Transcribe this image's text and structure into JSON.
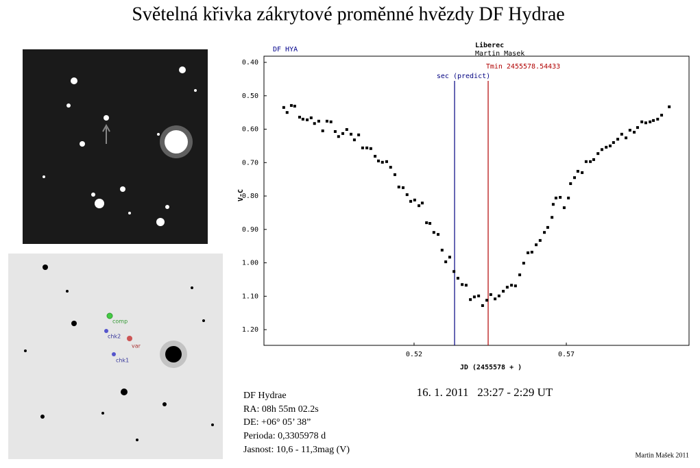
{
  "header": {
    "title": "Světelná křivka zákrytové proměnné hvězdy DF Hydrae"
  },
  "finder_labels": [
    "comp",
    "chk2",
    "var",
    "chk1"
  ],
  "chart_data": {
    "type": "scatter",
    "star_label": "DF HYA",
    "observatory": "Liberec",
    "observer": "Martin Masek",
    "xlabel": "JD (2455578 + )",
    "ylabel": "V-C",
    "xlim": [
      0.4707,
      0.6103
    ],
    "ylim": [
      1.247,
      0.3815
    ],
    "xticks": [
      0.52,
      0.57
    ],
    "yticks": [
      {
        "value": 0.4,
        "label": "0.40"
      },
      {
        "value": 0.5,
        "label": "0.50"
      },
      {
        "value": 0.6,
        "label": "0.60"
      },
      {
        "value": 0.7,
        "label": "0.70"
      },
      {
        "value": 0.8,
        "label": "0.80"
      },
      {
        "value": 0.9,
        "label": "0.90"
      },
      {
        "value": 1.0,
        "label": "1.00"
      },
      {
        "value": 1.1,
        "label": "1.10"
      },
      {
        "value": 1.2,
        "label": "1.20"
      }
    ],
    "color": "#000000",
    "x": [
      0.4772,
      0.4783,
      0.4797,
      0.4808,
      0.4824,
      0.4835,
      0.4849,
      0.4862,
      0.4873,
      0.4887,
      0.49,
      0.4914,
      0.4927,
      0.4941,
      0.4952,
      0.4966,
      0.4979,
      0.4993,
      0.5004,
      0.5018,
      0.5031,
      0.5045,
      0.5058,
      0.5072,
      0.5083,
      0.5096,
      0.511,
      0.5123,
      0.5137,
      0.515,
      0.5164,
      0.5177,
      0.5189,
      0.5202,
      0.5216,
      0.5227,
      0.5241,
      0.5252,
      0.5265,
      0.5279,
      0.5292,
      0.5304,
      0.5317,
      0.5331,
      0.5344,
      0.5358,
      0.5371,
      0.5385,
      0.5398,
      0.5412,
      0.5425,
      0.5439,
      0.5452,
      0.5466,
      0.5479,
      0.5493,
      0.5506,
      0.552,
      0.5533,
      0.5547,
      0.556,
      0.5574,
      0.5587,
      0.5601,
      0.5614,
      0.5628,
      0.5639,
      0.5653,
      0.5657,
      0.5666,
      0.568,
      0.5693,
      0.5707,
      0.5714,
      0.5727,
      0.5738,
      0.5752,
      0.5765,
      0.5779,
      0.579,
      0.5804,
      0.5817,
      0.5831,
      0.5844,
      0.5855,
      0.5869,
      0.5882,
      0.5896,
      0.5909,
      0.5923,
      0.5934,
      0.5948,
      0.5961,
      0.5975,
      0.5986,
      0.6,
      0.6013,
      0.6038
    ],
    "values": [
      0.535,
      0.55,
      0.529,
      0.531,
      0.564,
      0.57,
      0.572,
      0.566,
      0.583,
      0.576,
      0.605,
      0.576,
      0.578,
      0.607,
      0.622,
      0.613,
      0.601,
      0.615,
      0.632,
      0.617,
      0.656,
      0.656,
      0.658,
      0.681,
      0.695,
      0.699,
      0.697,
      0.714,
      0.736,
      0.773,
      0.775,
      0.796,
      0.816,
      0.812,
      0.829,
      0.821,
      0.88,
      0.882,
      0.909,
      0.915,
      0.962,
      0.997,
      0.983,
      1.026,
      1.046,
      1.065,
      1.067,
      1.11,
      1.102,
      1.099,
      1.128,
      1.112,
      1.095,
      1.108,
      1.099,
      1.085,
      1.073,
      1.067,
      1.069,
      1.036,
      1.001,
      0.97,
      0.968,
      0.946,
      0.933,
      0.909,
      0.894,
      0.864,
      0.825,
      0.806,
      0.804,
      0.835,
      0.806,
      0.763,
      0.745,
      0.726,
      0.73,
      0.697,
      0.697,
      0.691,
      0.673,
      0.661,
      0.654,
      0.65,
      0.64,
      0.63,
      0.615,
      0.626,
      0.603,
      0.609,
      0.595,
      0.578,
      0.581,
      0.578,
      0.574,
      0.57,
      0.558,
      0.533
    ],
    "vlines": [
      {
        "x": 0.5333,
        "label": "sec (predict)",
        "color": "#000080"
      },
      {
        "x": 0.54433,
        "label": "Tmin 2455578.54433",
        "color": "#b00000"
      }
    ]
  },
  "info": [
    "DF Hydrae",
    "RA: 08h 55m 02.2s",
    "DE:  +06° 05’ 38”",
    "Perioda: 0,3305978 d",
    "Jasnost: 10,6 - 11,3mag (V)"
  ],
  "date": "16. 1. 2011   23:27 - 2:29 UT",
  "credit": "Martin Mašek 2011"
}
